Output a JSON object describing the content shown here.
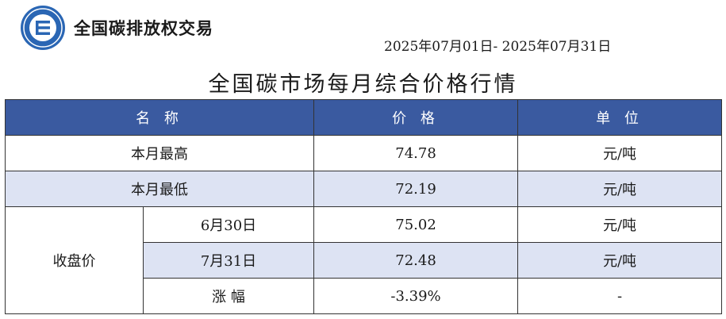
{
  "header": {
    "brand_name": "全国碳排放权交易",
    "date_range": "2025年07月01日- 2025年07月31日",
    "title": "全国碳市场每月综合价格行情"
  },
  "colors": {
    "header_bg": "#3a5aa0",
    "row_shade": "#dde3f3",
    "logo_blue": "#2a66b4"
  },
  "logo": {
    "icon": "carbon-exchange-logo-icon"
  },
  "table": {
    "headers": {
      "name": "名 称",
      "price": "价 格",
      "unit": "单 位"
    },
    "monthly_high": {
      "label": "本月最高",
      "price": "74.78",
      "unit": "元/吨"
    },
    "monthly_low": {
      "label": "本月最低",
      "price": "72.19",
      "unit": "元/吨"
    },
    "closing": {
      "label": "收盘价",
      "rows": [
        {
          "label": "6月30日",
          "price": "75.02",
          "unit": "元/吨"
        },
        {
          "label": "7月31日",
          "price": "72.48",
          "unit": "元/吨"
        },
        {
          "label": "涨 幅",
          "price": "-3.39%",
          "unit": "-"
        }
      ]
    }
  }
}
